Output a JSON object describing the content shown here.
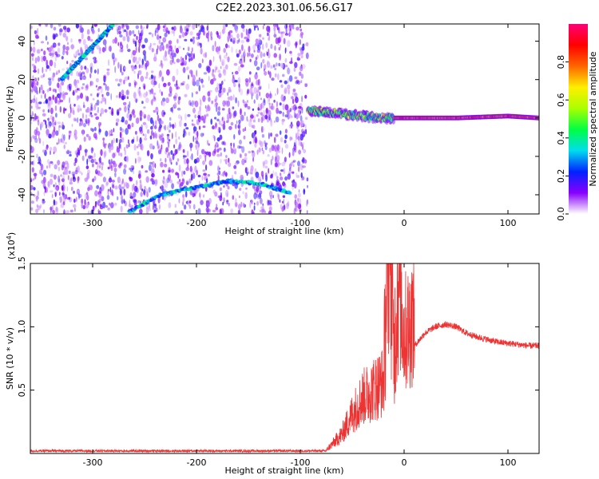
{
  "title": "C2E2.2023.301.06.56.G17",
  "chart_data": [
    {
      "type": "heatmap",
      "xlabel": "Height of straight line (km)",
      "ylabel": "Frequency (Hz)",
      "xlim": [
        -360,
        130
      ],
      "ylim": [
        -50,
        49
      ],
      "xticks": [
        -300,
        -200,
        -100,
        0,
        100
      ],
      "yticks": [
        -40,
        -20,
        0,
        20,
        40
      ],
      "noise_region_x": [
        -360,
        -93
      ],
      "features": [
        {
          "name": "descending line (upper left)",
          "x": [
            -330,
            -280
          ],
          "y": [
            20,
            49
          ]
        },
        {
          "name": "arc (lower)",
          "x": [
            -265,
            -235,
            -200,
            -170,
            -140,
            -110
          ],
          "y": [
            -49,
            -40,
            -36,
            -33,
            -34,
            -39
          ]
        },
        {
          "name": "carrier band",
          "x": [
            -93,
            -60,
            -20,
            0,
            50,
            100,
            130
          ],
          "y": [
            4,
            2,
            0,
            0,
            0,
            1,
            0
          ]
        }
      ],
      "colorbar": {
        "label": "Normalized spectral amplitude",
        "range": [
          0,
          1
        ],
        "ticks": [
          "0.0",
          "0.2",
          "0.4",
          "0.6",
          "0.8"
        ],
        "colors": [
          "#ffffff",
          "#8800ff",
          "#0022ff",
          "#00ddee",
          "#00ff44",
          "#aaff00",
          "#ffee00",
          "#ff6600",
          "#ff0000",
          "#ff0077"
        ]
      }
    },
    {
      "type": "line",
      "xlabel": "Height of straight line (km)",
      "ylabel": "SNR (10 * v/v)",
      "multiplier": "(x10",
      "exponent": "4",
      "multiplier_close": ")",
      "xlim": [
        -360,
        130
      ],
      "ylim": [
        0,
        1.5
      ],
      "xticks": [
        -300,
        -200,
        -100,
        0,
        100
      ],
      "yticks": [
        "0.5",
        "1.0",
        "1.5"
      ],
      "color": "#ee3333",
      "series": [
        {
          "name": "SNR",
          "x": [
            -360,
            -300,
            -200,
            -100,
            -75,
            -60,
            -50,
            -40,
            -30,
            -20,
            -14,
            -10,
            -5,
            0,
            10,
            20,
            30,
            40,
            50,
            60,
            70,
            80,
            90,
            100,
            110,
            120,
            130
          ],
          "values": [
            0.02,
            0.02,
            0.02,
            0.02,
            0.02,
            0.12,
            0.25,
            0.35,
            0.4,
            0.45,
            1.45,
            0.6,
            1.1,
            0.75,
            0.85,
            0.95,
            1.0,
            1.02,
            1.0,
            0.95,
            0.92,
            0.9,
            0.88,
            0.87,
            0.86,
            0.85,
            0.85
          ]
        }
      ]
    }
  ]
}
